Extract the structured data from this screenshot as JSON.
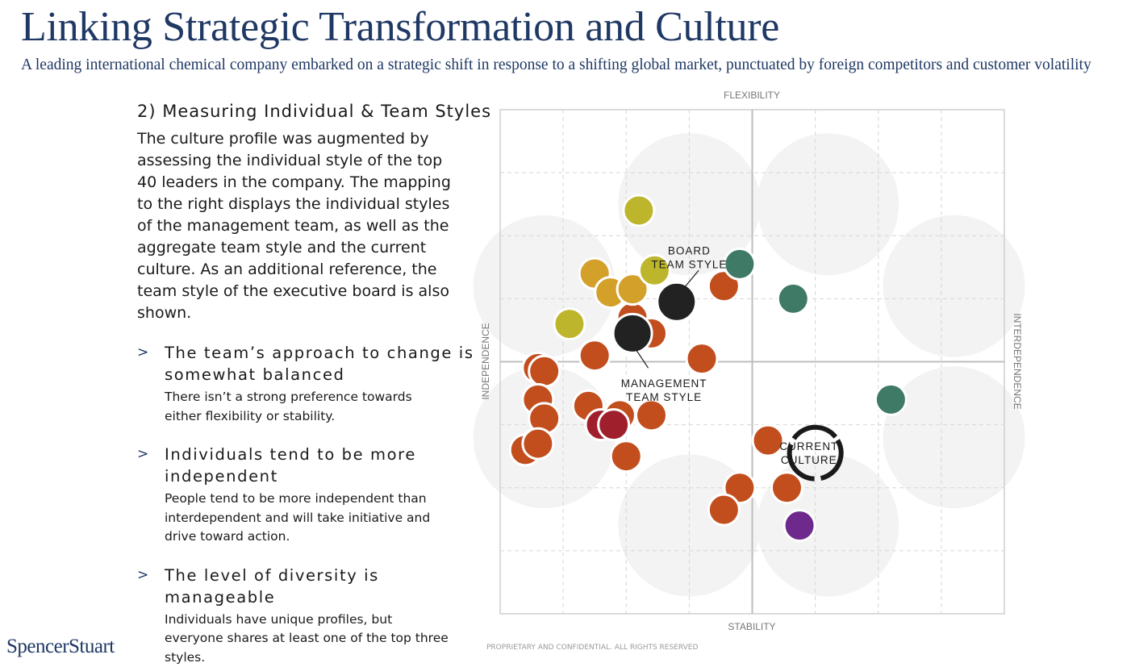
{
  "header": {
    "title": "Linking Strategic Transformation and Culture",
    "subtitle": "A leading international chemical company embarked on a strategic shift in response to a shifting global market, punctuated by foreign competitors and customer volatility"
  },
  "content": {
    "section_heading": "2) Measuring Individual & Team Styles",
    "intro": "The culture profile was augmented by assessing the individual style of the top 40 leaders in the company. The mapping to the right displays the individual styles of the management team, as well as the aggregate team style and the current culture. As an additional reference, the team style of the executive board is also shown.",
    "bullets": [
      {
        "marker": ">",
        "heading": "The team’s approach to change is\nsomewhat balanced",
        "body": "There isn’t a strong preference towards\neither flexibility or stability."
      },
      {
        "marker": ">",
        "heading": "Individuals tend to be more\nindependent",
        "body": "People tend to be more independent than\ninterdependent and will take initiative and\ndrive toward action."
      },
      {
        "marker": ">",
        "heading": "The level of diversity is manageable",
        "body": "Individuals have unique profiles, but\neveryone shares at least one of the top three\nstyles."
      }
    ]
  },
  "footer": {
    "logo": "SpencerStuart",
    "confidential": "PROPRIETARY AND CONFIDENTIAL. ALL RIGHTS RESERVED"
  },
  "colors": {
    "navy": "#1f3864",
    "orange": "#c24e1e",
    "yellow": "#bdb62c",
    "gold": "#d3a02a",
    "teal": "#3f7a66",
    "crimson": "#a01f2c",
    "purple": "#6d2a8c",
    "black": "#222222"
  },
  "chart_data": {
    "type": "scatter",
    "axes": {
      "top": "FLEXIBILITY",
      "bottom": "STABILITY",
      "left": "INDEPENDENCE",
      "right": "INTERDEPENDENCE"
    },
    "xlim": [
      -4,
      4
    ],
    "ylim": [
      -4,
      4
    ],
    "grid": true,
    "annotations": [
      {
        "text": "BOARD\nTEAM STYLE",
        "x": -1.0,
        "y": 1.7
      },
      {
        "text": "MANAGEMENT\nTEAM STYLE",
        "x": -1.4,
        "y": -0.4
      },
      {
        "text": "CURRENT\nCULTURE",
        "x": 0.9,
        "y": -1.4
      }
    ],
    "series": [
      {
        "name": "individual",
        "color": "orange",
        "points": [
          {
            "x": -3.4,
            "y": -0.1
          },
          {
            "x": -3.3,
            "y": -0.15
          },
          {
            "x": -3.4,
            "y": -0.6
          },
          {
            "x": -3.3,
            "y": -0.9
          },
          {
            "x": -3.6,
            "y": -1.4
          },
          {
            "x": -3.4,
            "y": -1.3
          },
          {
            "x": -2.6,
            "y": -0.7
          },
          {
            "x": -2.5,
            "y": 0.1
          },
          {
            "x": -2.1,
            "y": -0.85
          },
          {
            "x": -2.0,
            "y": -1.5
          },
          {
            "x": -1.6,
            "y": -0.85
          },
          {
            "x": -1.9,
            "y": 0.7
          },
          {
            "x": -1.6,
            "y": 0.45
          },
          {
            "x": -0.8,
            "y": 0.05
          },
          {
            "x": -0.45,
            "y": 1.2
          },
          {
            "x": 0.25,
            "y": -1.25
          },
          {
            "x": -0.2,
            "y": -2.0
          },
          {
            "x": -0.45,
            "y": -2.35
          },
          {
            "x": 0.55,
            "y": -2.0
          }
        ]
      },
      {
        "name": "individual-crimson",
        "color": "crimson",
        "points": [
          {
            "x": -2.4,
            "y": -1.0
          },
          {
            "x": -2.2,
            "y": -1.0
          }
        ]
      },
      {
        "name": "individual-gold",
        "color": "gold",
        "points": [
          {
            "x": -2.5,
            "y": 1.4
          },
          {
            "x": -2.25,
            "y": 1.1
          },
          {
            "x": -1.9,
            "y": 1.15
          }
        ]
      },
      {
        "name": "individual-yellow",
        "color": "yellow",
        "points": [
          {
            "x": -1.8,
            "y": 2.4
          },
          {
            "x": -1.55,
            "y": 1.45
          },
          {
            "x": -2.9,
            "y": 0.6
          }
        ]
      },
      {
        "name": "individual-teal",
        "color": "teal",
        "points": [
          {
            "x": -0.2,
            "y": 1.55
          },
          {
            "x": 0.65,
            "y": 1.0
          },
          {
            "x": 2.2,
            "y": -0.6
          }
        ]
      },
      {
        "name": "individual-purple",
        "color": "purple",
        "points": [
          {
            "x": 0.75,
            "y": -2.6
          }
        ]
      },
      {
        "name": "team",
        "color": "black",
        "points": [
          {
            "x": -1.2,
            "y": 0.95
          },
          {
            "x": -1.9,
            "y": 0.45
          }
        ]
      }
    ],
    "current_culture": {
      "x": 1.0,
      "y": -1.45
    }
  }
}
